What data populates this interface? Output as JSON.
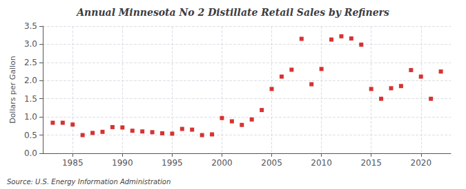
{
  "chart_data": {
    "type": "scatter",
    "title": "Annual Minnesota No 2 Distillate Retail Sales by Refiners",
    "ylabel": "Dollars per Gallon",
    "annotation": "Source: U.S. Energy Information Administration",
    "x": [
      1983,
      1984,
      1985,
      1986,
      1987,
      1988,
      1989,
      1990,
      1991,
      1992,
      1993,
      1994,
      1995,
      1996,
      1997,
      1998,
      1999,
      2000,
      2001,
      2002,
      2003,
      2004,
      2005,
      2006,
      2007,
      2008,
      2009,
      2010,
      2011,
      2012,
      2013,
      2014,
      2015,
      2016,
      2017,
      2018,
      2019,
      2020,
      2021,
      2022
    ],
    "values": [
      0.84,
      0.84,
      0.79,
      0.5,
      0.56,
      0.59,
      0.72,
      0.71,
      0.62,
      0.6,
      0.58,
      0.55,
      0.54,
      0.67,
      0.65,
      0.5,
      0.52,
      0.97,
      0.88,
      0.78,
      0.93,
      1.19,
      1.77,
      2.11,
      2.3,
      3.15,
      1.9,
      2.32,
      3.13,
      3.22,
      3.16,
      2.99,
      1.77,
      1.5,
      1.79,
      1.85,
      2.29,
      2.11,
      1.5,
      2.25
    ],
    "color": "#cc0000",
    "marker": "square",
    "xlim": [
      1982,
      2023
    ],
    "xticks": [
      1985,
      1990,
      1995,
      2000,
      2005,
      2010,
      2015,
      2020
    ],
    "ylim": [
      0.0,
      3.5
    ],
    "yticks": [
      {
        "value": 0,
        "label": "0.0"
      },
      0.5,
      {
        "value": 1,
        "label": "1.0"
      },
      1.5,
      {
        "value": 2,
        "label": "2.0"
      },
      2.5,
      {
        "value": 3,
        "label": "3.0"
      },
      3.5
    ],
    "grid": true
  }
}
